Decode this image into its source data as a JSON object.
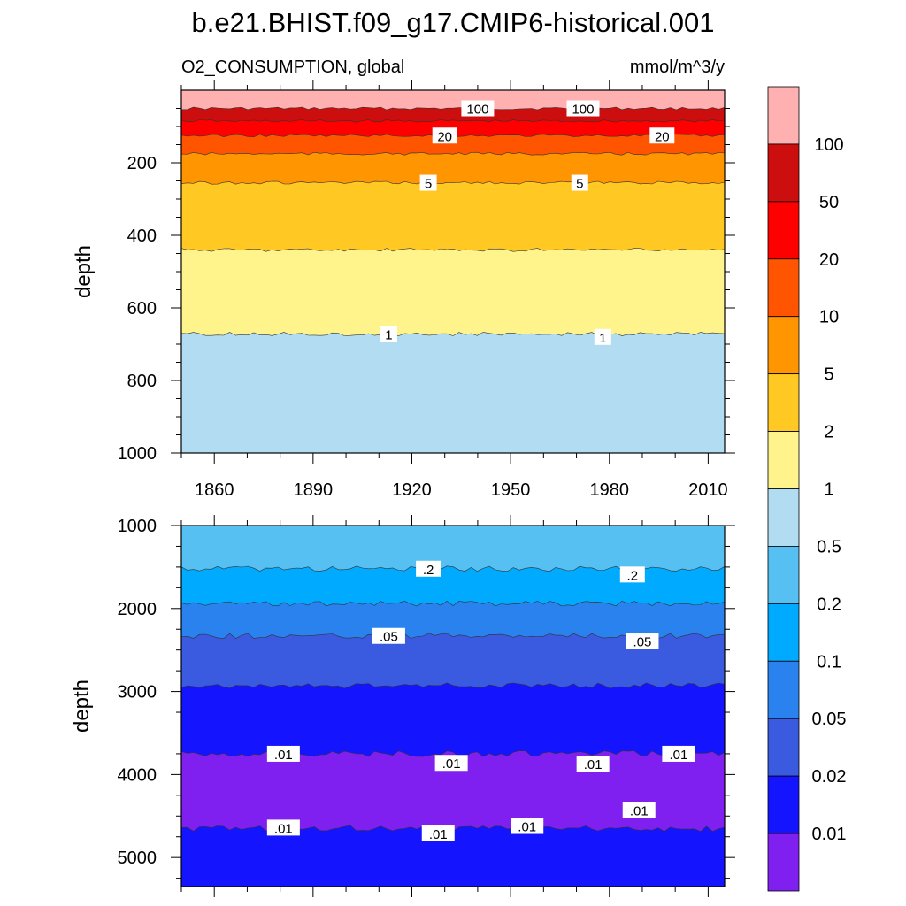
{
  "title": "b.e21.BHIST.f09_g17.CMIP6-historical.001",
  "subtitle_left": "O2_CONSUMPTION, global",
  "subtitle_right": "mmol/m^3/y",
  "chart_data": [
    {
      "type": "contour",
      "panel": "upper",
      "ylabel": "depth",
      "xlim": [
        1850,
        2015
      ],
      "ylim": [
        0,
        1000
      ],
      "y_inverted": true,
      "x_ticks": [
        1860,
        1890,
        1920,
        1950,
        1980,
        2010
      ],
      "x_tick_labels": [
        "1860",
        "1890",
        "1920",
        "1950",
        "1980",
        "2010"
      ],
      "y_ticks": [
        200,
        400,
        600,
        800,
        1000
      ],
      "y_tick_labels": [
        "200",
        "400",
        "600",
        "800",
        "1000"
      ],
      "bands": [
        {
          "top": 0,
          "bottom": 50,
          "color": "#ffb0b0"
        },
        {
          "top": 50,
          "bottom": 85,
          "color": "#cc0e0e"
        },
        {
          "top": 85,
          "bottom": 125,
          "color": "#ff0000"
        },
        {
          "top": 125,
          "bottom": 175,
          "color": "#ff5500"
        },
        {
          "top": 175,
          "bottom": 255,
          "color": "#ff9500"
        },
        {
          "top": 255,
          "bottom": 440,
          "color": "#ffc822"
        },
        {
          "top": 440,
          "bottom": 672,
          "color": "#fff38c"
        },
        {
          "top": 672,
          "bottom": 1000,
          "color": "#b2dcf2"
        }
      ],
      "contour_labels": [
        {
          "text": "100",
          "x": 1940,
          "y": 50
        },
        {
          "text": "100",
          "x": 1972,
          "y": 50
        },
        {
          "text": "20",
          "x": 1930,
          "y": 125
        },
        {
          "text": "20",
          "x": 1996,
          "y": 125
        },
        {
          "text": "5",
          "x": 1925,
          "y": 255
        },
        {
          "text": "5",
          "x": 1971,
          "y": 255
        },
        {
          "text": "1",
          "x": 1913,
          "y": 672
        },
        {
          "text": "1",
          "x": 1978,
          "y": 680
        }
      ]
    },
    {
      "type": "contour",
      "panel": "lower",
      "ylabel": "depth",
      "xlim": [
        1850,
        2015
      ],
      "ylim": [
        1000,
        5350
      ],
      "y_inverted": true,
      "y_ticks": [
        1000,
        2000,
        3000,
        4000,
        5000
      ],
      "y_tick_labels": [
        "1000",
        "2000",
        "3000",
        "4000",
        "5000"
      ],
      "bands": [
        {
          "top": 1000,
          "bottom": 1520,
          "color": "#56c0f2"
        },
        {
          "top": 1520,
          "bottom": 1940,
          "color": "#00aaff"
        },
        {
          "top": 1940,
          "bottom": 2330,
          "color": "#2a82ee"
        },
        {
          "top": 2330,
          "bottom": 2930,
          "color": "#3a5ae0"
        },
        {
          "top": 2930,
          "bottom": 3750,
          "color": "#1414ff"
        },
        {
          "top": 3750,
          "bottom": 4650,
          "color": "#8020f0"
        },
        {
          "top": 4650,
          "bottom": 5350,
          "color": "#1414ff"
        }
      ],
      "contour_labels": [
        {
          "text": ".2",
          "x": 1925,
          "y": 1520
        },
        {
          "text": ".2",
          "x": 1987,
          "y": 1590
        },
        {
          "text": ".05",
          "x": 1913,
          "y": 2330
        },
        {
          "text": ".05",
          "x": 1990,
          "y": 2390
        },
        {
          "text": ".01",
          "x": 1881,
          "y": 3750
        },
        {
          "text": ".01",
          "x": 1932,
          "y": 3860
        },
        {
          "text": ".01",
          "x": 1975,
          "y": 3870
        },
        {
          "text": ".01",
          "x": 2001,
          "y": 3750
        },
        {
          "text": ".01",
          "x": 1989,
          "y": 4430
        },
        {
          "text": ".01",
          "x": 1881,
          "y": 4640
        },
        {
          "text": ".01",
          "x": 1928,
          "y": 4710
        },
        {
          "text": ".01",
          "x": 1955,
          "y": 4620
        }
      ]
    }
  ],
  "colorbar": {
    "colors": [
      "#ffb0b0",
      "#cc0e0e",
      "#ff0000",
      "#ff5500",
      "#ff9500",
      "#ffc822",
      "#fff38c",
      "#b2dcf2",
      "#56c0f2",
      "#00aaff",
      "#2a82ee",
      "#3a5ae0",
      "#1414ff",
      "#8020f0"
    ],
    "labels": [
      "100",
      "50",
      "20",
      "10",
      "5",
      "2",
      "1",
      "0.5",
      "0.2",
      "0.1",
      "0.05",
      "0.02",
      "0.01"
    ]
  }
}
